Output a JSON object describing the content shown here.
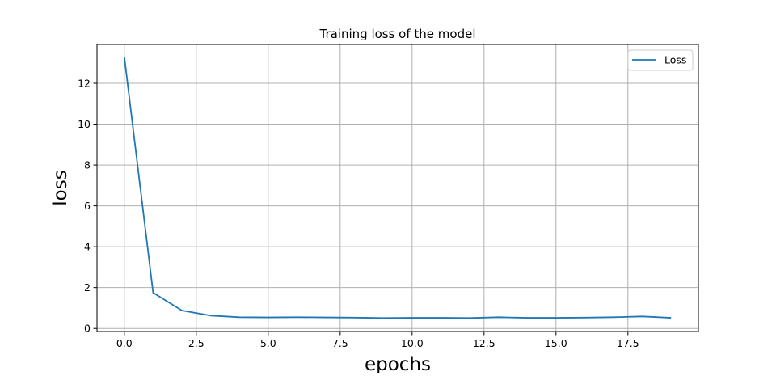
{
  "chart_data": {
    "type": "line",
    "title": "Training loss of the model",
    "xlabel": "epochs",
    "ylabel": "loss",
    "xlim": [
      -0.95,
      19.95
    ],
    "ylim": [
      -0.15,
      13.9
    ],
    "xticks": [
      0.0,
      2.5,
      5.0,
      7.5,
      10.0,
      12.5,
      15.0,
      17.5
    ],
    "xtick_labels": [
      "0.0",
      "2.5",
      "5.0",
      "7.5",
      "10.0",
      "12.5",
      "15.0",
      "17.5"
    ],
    "yticks": [
      0,
      2,
      4,
      6,
      8,
      10,
      12
    ],
    "ytick_labels": [
      "0",
      "2",
      "4",
      "6",
      "8",
      "10",
      "12"
    ],
    "grid": true,
    "legend_position": "top-right",
    "series": [
      {
        "name": "Loss",
        "color": "#1f77b4",
        "x": [
          0,
          1,
          2,
          3,
          4,
          5,
          6,
          7,
          8,
          9,
          10,
          11,
          12,
          13,
          14,
          15,
          16,
          17,
          18,
          19
        ],
        "values": [
          13.3,
          1.75,
          0.88,
          0.63,
          0.55,
          0.54,
          0.55,
          0.54,
          0.53,
          0.51,
          0.52,
          0.52,
          0.51,
          0.55,
          0.52,
          0.52,
          0.53,
          0.55,
          0.59,
          0.52
        ]
      }
    ]
  }
}
